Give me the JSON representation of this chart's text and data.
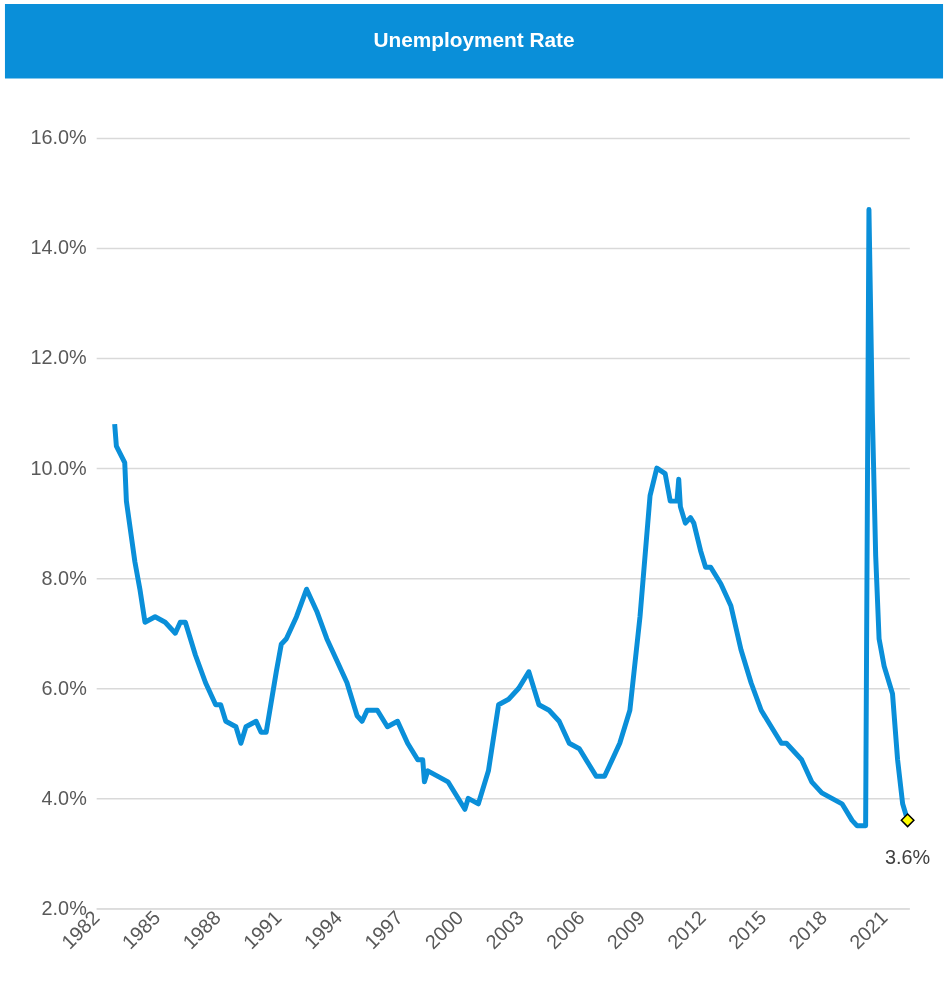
{
  "chart_data": {
    "type": "line",
    "title": "Unemployment Rate",
    "color": "#0a8fd9",
    "x": [
      "1982-12",
      "1983-01",
      "1983-06",
      "1983-07",
      "1983-12",
      "1984-03",
      "1984-06",
      "1984-12",
      "1985-06",
      "1985-12",
      "1986-03",
      "1986-06",
      "1986-12",
      "1987-06",
      "1987-12",
      "1988-03",
      "1988-06",
      "1988-12",
      "1989-03",
      "1989-06",
      "1989-12",
      "1990-03",
      "1990-06",
      "1990-12",
      "1991-03",
      "1991-06",
      "1991-12",
      "1992-06",
      "1992-12",
      "1993-06",
      "1993-12",
      "1994-06",
      "1994-12",
      "1995-03",
      "1995-06",
      "1995-12",
      "1996-06",
      "1996-12",
      "1997-06",
      "1997-12",
      "1998-03",
      "1998-04",
      "1998-06",
      "1998-12",
      "1999-06",
      "1999-12",
      "2000-04",
      "2000-06",
      "2000-12",
      "2001-06",
      "2001-12",
      "2002-06",
      "2002-12",
      "2003-06",
      "2003-12",
      "2004-06",
      "2004-12",
      "2005-06",
      "2005-12",
      "2006-06",
      "2006-10",
      "2007-03",
      "2007-06",
      "2007-12",
      "2008-06",
      "2008-12",
      "2009-06",
      "2009-10",
      "2010-03",
      "2010-06",
      "2010-10",
      "2010-11",
      "2010-12",
      "2011-03",
      "2011-06",
      "2011-08",
      "2011-12",
      "2012-03",
      "2012-06",
      "2012-12",
      "2013-06",
      "2013-12",
      "2014-06",
      "2014-12",
      "2015-06",
      "2015-12",
      "2016-03",
      "2016-06",
      "2016-12",
      "2017-06",
      "2017-12",
      "2018-06",
      "2018-12",
      "2019-06",
      "2019-09",
      "2020-02",
      "2020-04",
      "2020-06",
      "2020-08",
      "2020-10",
      "2021-01",
      "2021-06",
      "2021-09",
      "2021-12",
      "2022-03"
    ],
    "values": [
      10.8,
      10.4,
      10.1,
      9.4,
      8.3,
      7.8,
      7.2,
      7.3,
      7.2,
      7.0,
      7.2,
      7.2,
      6.6,
      6.1,
      5.7,
      5.7,
      5.4,
      5.3,
      5.0,
      5.3,
      5.4,
      5.2,
      5.2,
      6.3,
      6.8,
      6.9,
      7.3,
      7.8,
      7.4,
      6.9,
      6.5,
      6.1,
      5.5,
      5.4,
      5.6,
      5.6,
      5.3,
      5.4,
      5.0,
      4.7,
      4.7,
      4.3,
      4.5,
      4.4,
      4.3,
      4.0,
      3.8,
      4.0,
      3.9,
      4.5,
      5.7,
      5.8,
      6.0,
      6.3,
      5.7,
      5.6,
      5.4,
      5.0,
      4.9,
      4.6,
      4.4,
      4.4,
      4.6,
      5.0,
      5.6,
      7.3,
      9.5,
      10.0,
      9.9,
      9.4,
      9.4,
      9.8,
      9.3,
      9.0,
      9.1,
      9.0,
      8.5,
      8.2,
      8.2,
      7.9,
      7.5,
      6.7,
      6.1,
      5.6,
      5.3,
      5.0,
      5.0,
      4.9,
      4.7,
      4.3,
      4.1,
      4.0,
      3.9,
      3.6,
      3.5,
      3.5,
      14.7,
      11.0,
      8.4,
      6.9,
      6.4,
      5.9,
      4.7,
      3.9,
      3.6
    ],
    "xlim": [
      "1982-01",
      "2022-04"
    ],
    "xticks": [
      "1982",
      "1985",
      "1988",
      "1991",
      "1994",
      "1997",
      "2000",
      "2003",
      "2006",
      "2009",
      "2012",
      "2015",
      "2018",
      "2021"
    ],
    "ylim": [
      2,
      16
    ],
    "yticks": [
      {
        "value": 2,
        "label": "2.0%"
      },
      {
        "value": 4,
        "label": "4.0%"
      },
      {
        "value": 6,
        "label": "6.0%"
      },
      {
        "value": 8,
        "label": "8.0%"
      },
      {
        "value": 10,
        "label": "10.0%"
      },
      {
        "value": 12,
        "label": "12.0%"
      },
      {
        "value": 14,
        "label": "14.0%"
      },
      {
        "value": 16,
        "label": "16.0%"
      }
    ],
    "grid": "y",
    "annotations": [
      {
        "text": "3.6%",
        "x": "2022-03",
        "y": 3.6
      }
    ]
  }
}
